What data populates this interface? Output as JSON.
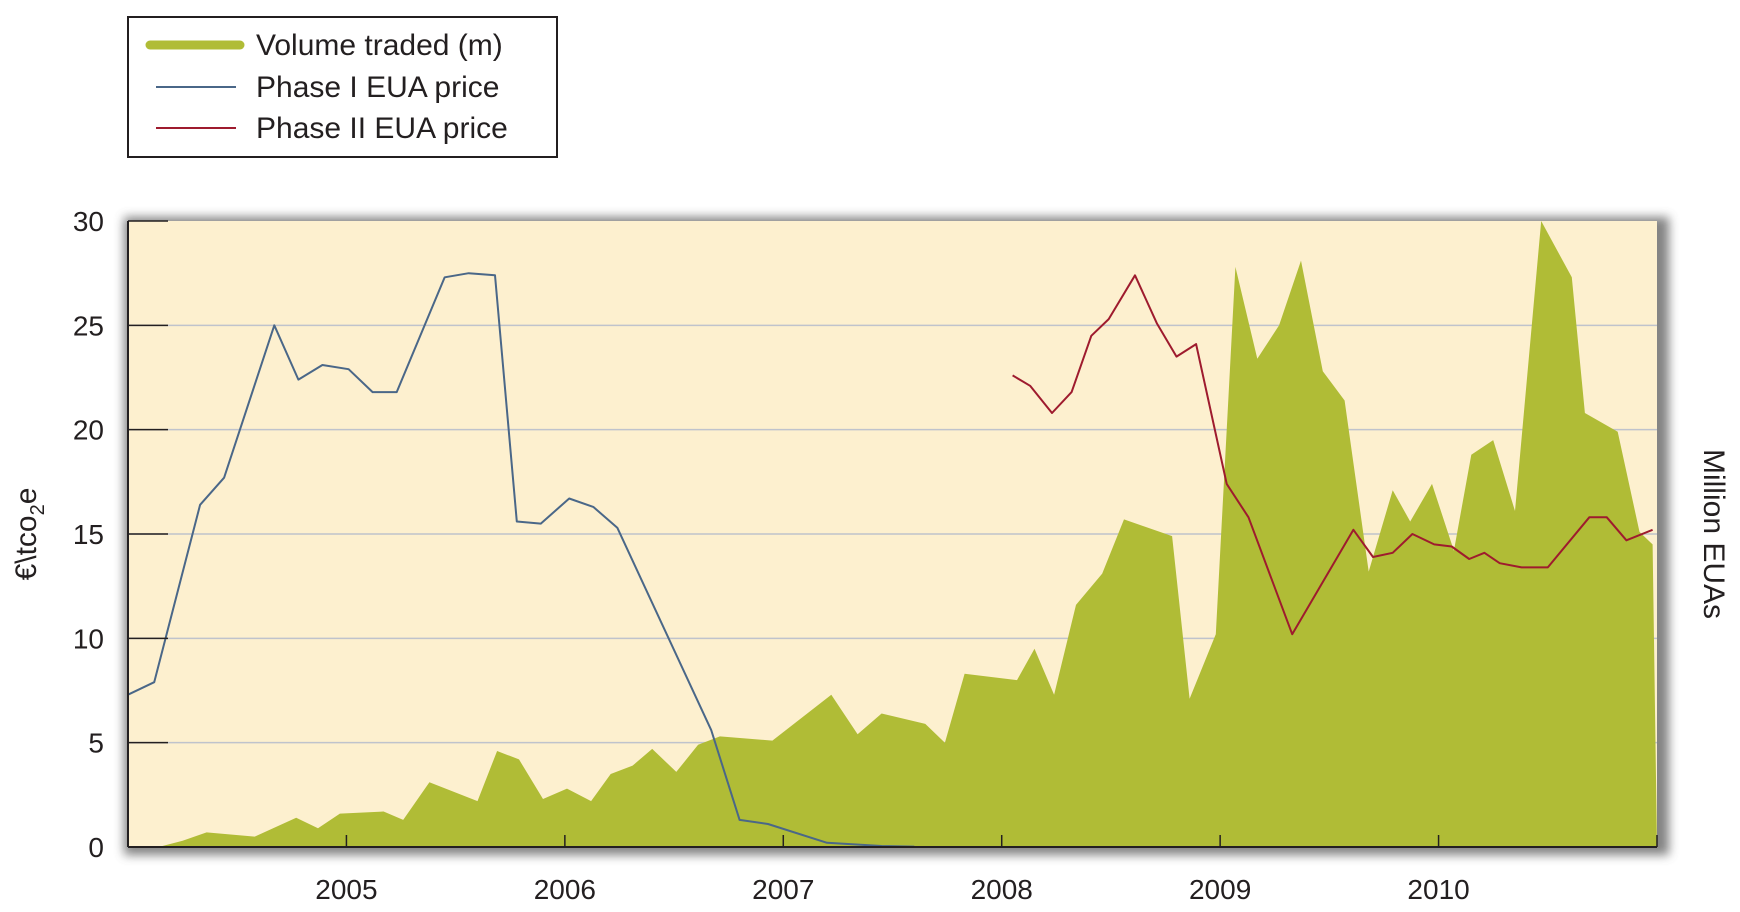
{
  "chart_data": {
    "type": "area",
    "title": "",
    "ylabel": "€\\tco",
    "ylabel_subscript": "2",
    "ylabel_suffix": "e",
    "y2label": "Million EUAs",
    "ylim": [
      0,
      30
    ],
    "yticks": [
      "0",
      "5",
      "10",
      "15",
      "20",
      "25",
      "30"
    ],
    "xlim": [
      2004.0,
      2011.0
    ],
    "xticks": [
      "2005",
      "2006",
      "2007",
      "2008",
      "2009",
      "2010"
    ],
    "grid": true,
    "legend_position": "top-left",
    "legend": [
      {
        "label": "Volume traded (m)",
        "color": "#b0bc36"
      },
      {
        "label": "Phase I EUA price",
        "color": "#4a6788"
      },
      {
        "label": "Phase II EUA price",
        "color": "#9e1b2e"
      }
    ],
    "colors": {
      "plot_background": "#fdf0cf",
      "volume": "#b0bc36",
      "phase1": "#4a6788",
      "phase2": "#9e1b2e",
      "grid": "#bfc3cc"
    },
    "series": [
      {
        "name": "Volume traded (m)",
        "style": "area",
        "x": [
          2004.0,
          2004.14,
          2004.25,
          2004.36,
          2004.58,
          2004.77,
          2004.87,
          2004.97,
          2005.17,
          2005.26,
          2005.38,
          2005.6,
          2005.69,
          2005.79,
          2005.9,
          2006.01,
          2006.12,
          2006.21,
          2006.31,
          2006.4,
          2006.51,
          2006.61,
          2006.71,
          2006.95,
          2007.22,
          2007.34,
          2007.45,
          2007.65,
          2007.74,
          2007.83,
          2008.07,
          2008.15,
          2008.24,
          2008.34,
          2008.46,
          2008.56,
          2008.78,
          2008.86,
          2008.98,
          2009.07,
          2009.17,
          2009.27,
          2009.37,
          2009.47,
          2009.57,
          2009.68,
          2009.79,
          2009.87,
          2009.97,
          2010.07,
          2010.15,
          2010.25,
          2010.35,
          2010.47,
          2010.61,
          2010.67,
          2010.82,
          2010.92,
          2010.98,
          2011.0
        ],
        "values": [
          0.0,
          0.0,
          0.3,
          0.7,
          0.5,
          1.4,
          0.9,
          1.6,
          1.7,
          1.3,
          3.1,
          2.2,
          4.6,
          4.2,
          2.3,
          2.8,
          2.2,
          3.5,
          3.9,
          4.7,
          3.6,
          4.9,
          5.3,
          5.1,
          7.3,
          5.4,
          6.4,
          5.9,
          5.0,
          8.3,
          8.0,
          9.5,
          7.3,
          11.6,
          13.1,
          15.7,
          14.9,
          7.1,
          10.2,
          27.8,
          23.4,
          25.0,
          28.1,
          22.8,
          21.4,
          13.2,
          17.1,
          15.6,
          17.4,
          14.2,
          18.8,
          19.5,
          16.1,
          30.0,
          27.3,
          20.8,
          19.9,
          15.1,
          14.5,
          0.0
        ]
      },
      {
        "name": "Phase I EUA price",
        "style": "line",
        "x": [
          2004.0,
          2004.12,
          2004.33,
          2004.44,
          2004.67,
          2004.78,
          2004.89,
          2005.01,
          2005.12,
          2005.23,
          2005.45,
          2005.56,
          2005.68,
          2005.78,
          2005.89,
          2006.02,
          2006.13,
          2006.24,
          2006.67,
          2006.8,
          2006.93,
          2007.2,
          2007.45,
          2007.6
        ],
        "values": [
          7.3,
          7.9,
          16.4,
          17.7,
          25.0,
          22.4,
          23.1,
          22.9,
          21.8,
          21.8,
          27.3,
          27.5,
          27.4,
          15.6,
          15.5,
          16.7,
          16.3,
          15.3,
          5.6,
          1.3,
          1.1,
          0.2,
          0.05,
          0.02
        ]
      },
      {
        "name": "Phase II EUA price",
        "style": "line",
        "x": [
          2008.05,
          2008.13,
          2008.23,
          2008.32,
          2008.41,
          2008.49,
          2008.61,
          2008.71,
          2008.8,
          2008.89,
          2009.03,
          2009.13,
          2009.33,
          2009.61,
          2009.7,
          2009.79,
          2009.88,
          2009.98,
          2010.06,
          2010.14,
          2010.21,
          2010.28,
          2010.38,
          2010.5,
          2010.69,
          2010.77,
          2010.86,
          2010.98
        ],
        "values": [
          22.6,
          22.1,
          20.8,
          21.8,
          24.5,
          25.3,
          27.4,
          25.1,
          23.5,
          24.1,
          17.4,
          15.8,
          10.2,
          15.2,
          13.9,
          14.1,
          15.0,
          14.5,
          14.4,
          13.8,
          14.1,
          13.6,
          13.4,
          13.4,
          15.8,
          15.8,
          14.7,
          15.2
        ]
      }
    ]
  }
}
